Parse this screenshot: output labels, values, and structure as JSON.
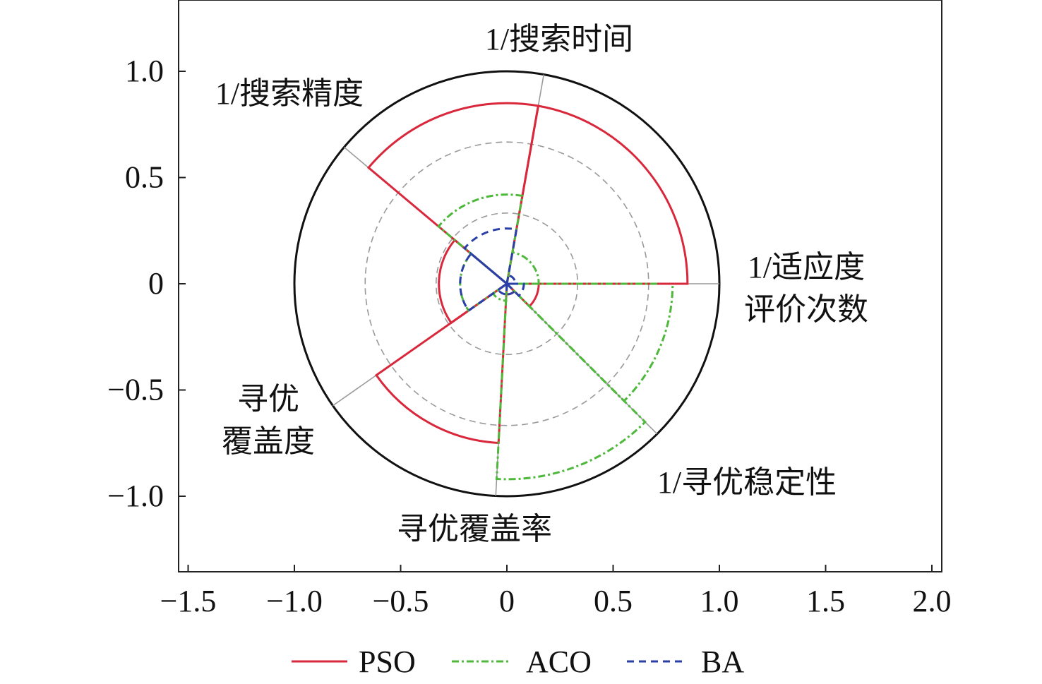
{
  "chart_data": {
    "type": "polar-area",
    "xlim": [
      -1.55,
      2.05
    ],
    "ylim": [
      -1.36,
      1.33
    ],
    "x_ticks": [
      -1.5,
      -1.0,
      -0.5,
      0,
      0.5,
      1.0,
      1.5,
      2.0
    ],
    "x_tick_labels": [
      "−1.5",
      "−1.0",
      "−0.5",
      "0",
      "0.5",
      "1.0",
      "1.5",
      "2.0"
    ],
    "y_ticks": [
      1.0,
      0.5,
      0,
      -0.5,
      -1.0
    ],
    "y_tick_labels": [
      "1.0",
      "0.5",
      "0",
      "−0.5",
      "−1.0"
    ],
    "rings": [
      0.333,
      0.667
    ],
    "categories": [
      {
        "start_deg": 0,
        "label_lines": [
          "1/适应度",
          "评价次数"
        ]
      },
      {
        "start_deg": 80,
        "label_lines": [
          "1/搜索时间"
        ]
      },
      {
        "start_deg": 140,
        "label_lines": [
          "1/搜索精度"
        ]
      },
      {
        "start_deg": 215,
        "label_lines": [
          "寻优",
          "覆盖度"
        ]
      },
      {
        "start_deg": 267,
        "label_lines": [
          "寻优覆盖率"
        ]
      },
      {
        "start_deg": 315,
        "label_lines": [
          "1/寻优稳定性"
        ]
      }
    ],
    "series": [
      {
        "name": "PSO",
        "color": "#d9283c",
        "dash": "none",
        "values": [
          0.85,
          0.85,
          0.32,
          0.75,
          0.05,
          0.15
        ]
      },
      {
        "name": "ACO",
        "color": "#4db83a",
        "dash": "10 4 3 4",
        "values": [
          0.15,
          0.42,
          0.22,
          0.08,
          0.92,
          0.78
        ]
      },
      {
        "name": "BA",
        "color": "#2a3fa8",
        "dash": "10 7",
        "values": [
          0.04,
          0.26,
          0.22,
          0.05,
          0.05,
          0.08
        ]
      }
    ],
    "pso_radial_segment": {
      "angle_deg": 0,
      "from": 0.72,
      "to": 0.85
    },
    "legend_position": "bottom"
  },
  "legend": {
    "pso": "PSO",
    "aco": "ACO",
    "ba": "BA"
  }
}
